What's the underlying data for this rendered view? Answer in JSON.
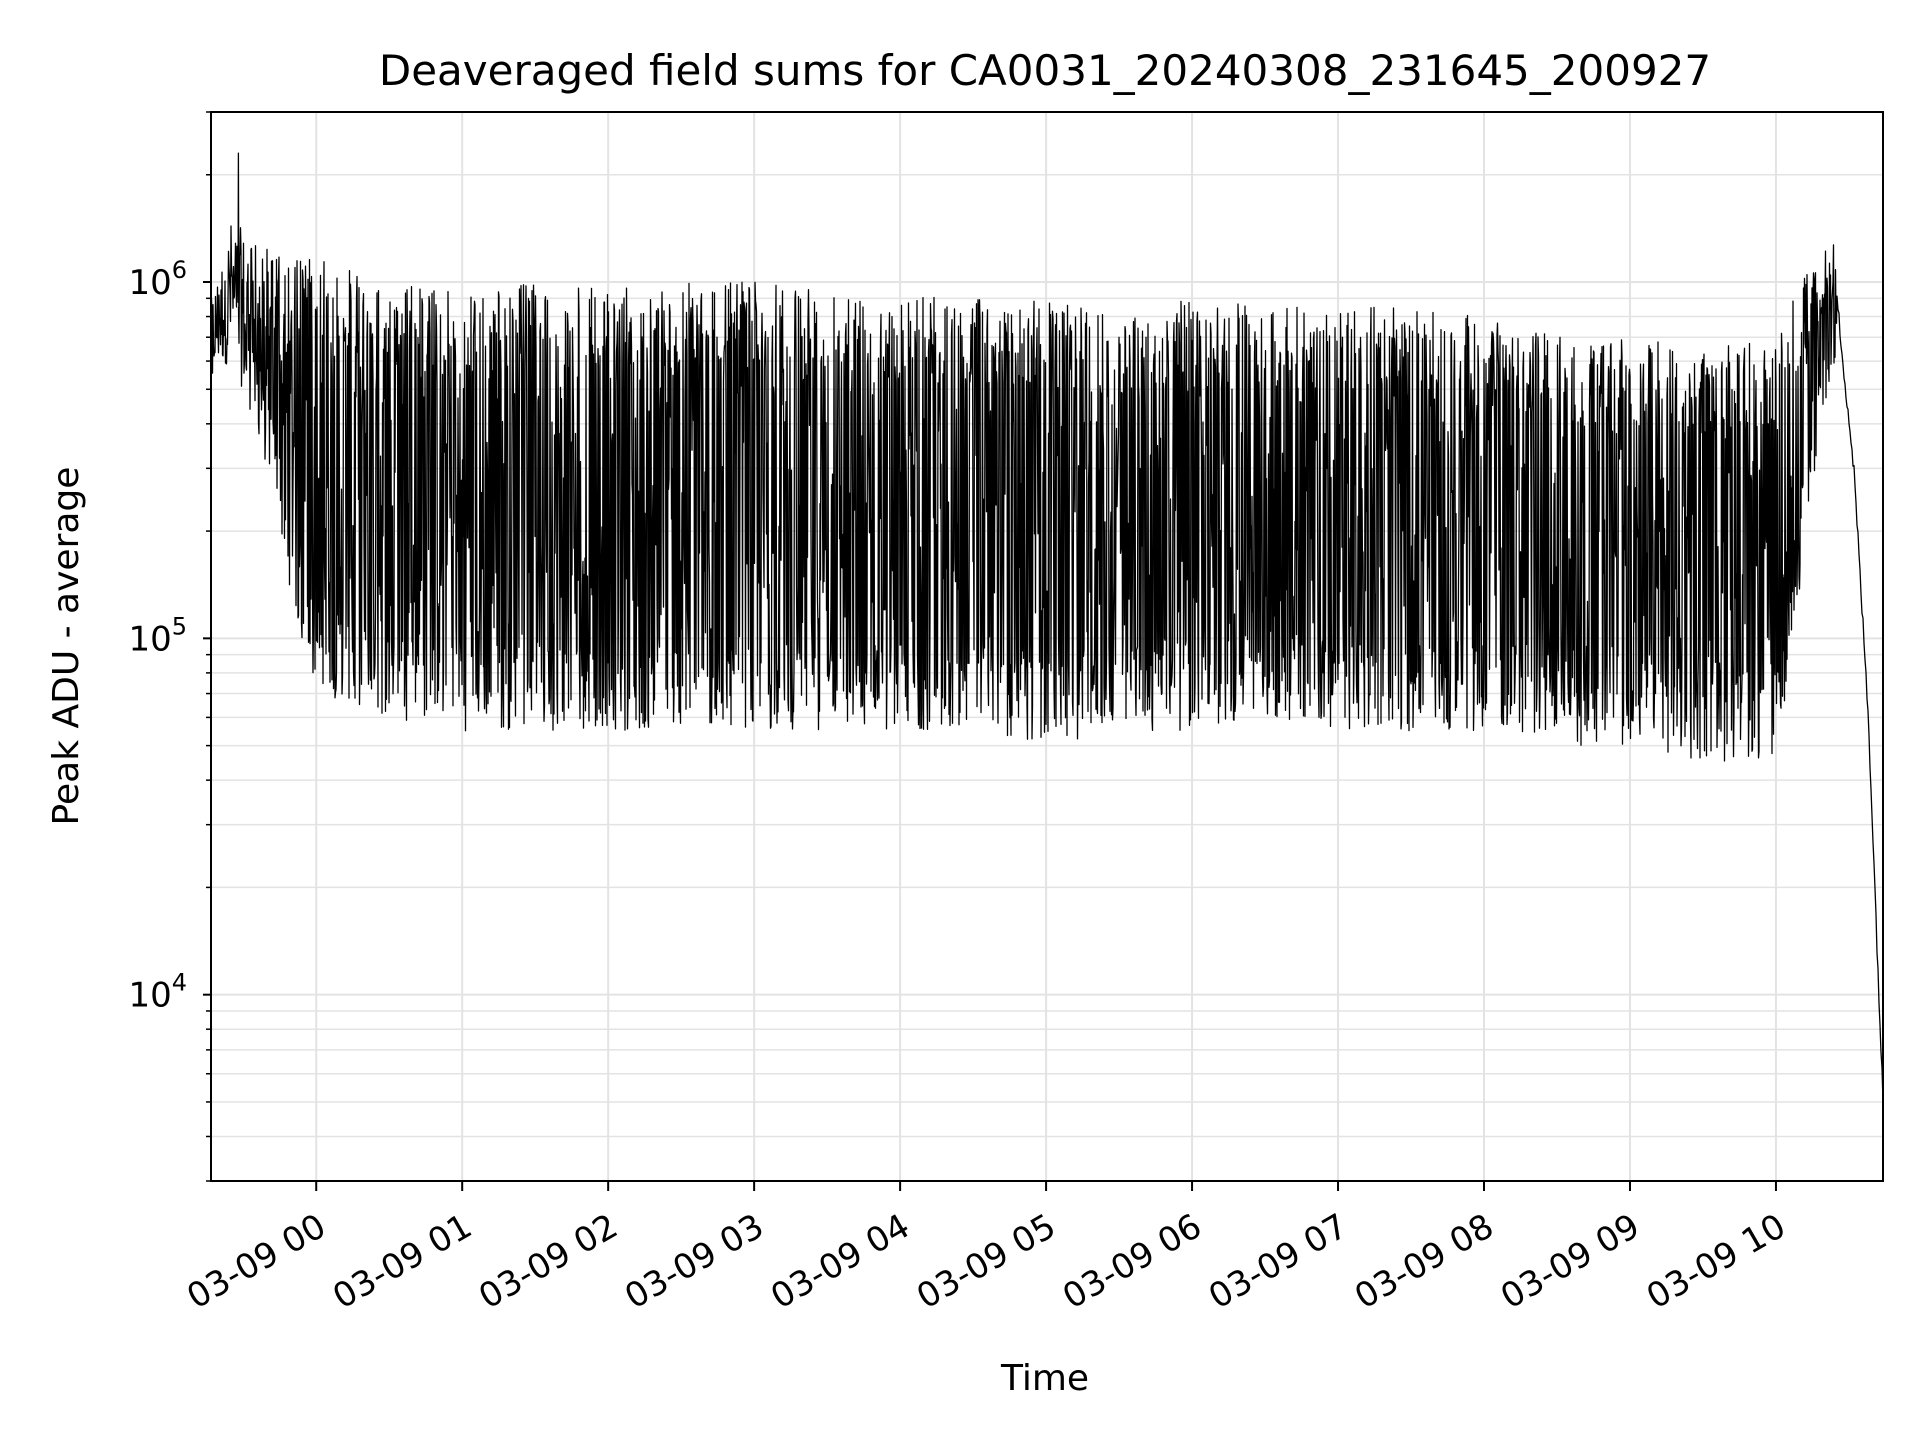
{
  "chart_data": {
    "type": "line",
    "title": "Deaveraged field sums for CA0031_20240308_231645_200927",
    "xlabel": "Time",
    "ylabel": "Peak ADU - average",
    "yscale": "log",
    "ylim": [
      3000,
      3000000
    ],
    "xlim": [
      "2024-03-08 23:16:45",
      "2024-03-09 10:44:00"
    ],
    "grid": true,
    "legend": "none",
    "line_color": "#000000",
    "x_ticks": [
      "03-09 00",
      "03-09 01",
      "03-09 02",
      "03-09 03",
      "03-09 04",
      "03-09 05",
      "03-09 06",
      "03-09 07",
      "03-09 08",
      "03-09 09",
      "03-09 10"
    ],
    "x_tick_times": [
      "2024-03-09 00:00",
      "2024-03-09 01:00",
      "2024-03-09 02:00",
      "2024-03-09 03:00",
      "2024-03-09 04:00",
      "2024-03-09 05:00",
      "2024-03-09 06:00",
      "2024-03-09 07:00",
      "2024-03-09 08:00",
      "2024-03-09 09:00",
      "2024-03-09 10:00"
    ],
    "y_ticks": [
      {
        "value": 10000,
        "base": "10",
        "exp": "4"
      },
      {
        "value": 100000,
        "base": "10",
        "exp": "5"
      },
      {
        "value": 1000000,
        "base": "10",
        "exp": "6"
      }
    ],
    "series": [
      {
        "x": [
          "2024-03-08 23:16:45",
          "2024-03-08 23:25",
          "2024-03-08 23:35",
          "2024-03-08 23:45",
          "2024-03-08 23:55",
          "2024-03-09 00:10",
          "2024-03-09 00:30",
          "2024-03-09 01:00",
          "2024-03-09 01:30",
          "2024-03-09 02:00",
          "2024-03-09 02:30",
          "2024-03-09 03:00",
          "2024-03-09 03:30",
          "2024-03-09 04:00",
          "2024-03-09 04:30",
          "2024-03-09 05:00",
          "2024-03-09 05:30",
          "2024-03-09 06:00",
          "2024-03-09 06:30",
          "2024-03-09 07:00",
          "2024-03-09 07:30",
          "2024-03-09 08:00",
          "2024-03-09 08:30",
          "2024-03-09 09:00",
          "2024-03-09 09:30",
          "2024-03-09 10:00",
          "2024-03-09 10:15",
          "2024-03-09 10:25",
          "2024-03-09 10:32",
          "2024-03-09 10:38",
          "2024-03-09 10:44"
        ],
        "values": [
          700000,
          750000,
          650000,
          600000,
          350000,
          250000,
          300000,
          280000,
          250000,
          300000,
          320000,
          300000,
          280000,
          300000,
          300000,
          250000,
          260000,
          250000,
          280000,
          270000,
          250000,
          240000,
          260000,
          220000,
          200000,
          300000,
          600000,
          900000,
          300000,
          60000,
          5000
        ],
        "upper_envelope": [
          900000,
          1500000,
          1300000,
          1200000,
          1200000,
          1100000,
          1000000,
          950000,
          1000000,
          950000,
          1000000,
          1000000,
          950000,
          950000,
          900000,
          900000,
          800000,
          900000,
          850000,
          850000,
          850000,
          800000,
          700000,
          700000,
          650000,
          700000,
          1200000,
          1400000,
          450000,
          80000,
          5000
        ],
        "lower_envelope": [
          550000,
          600000,
          400000,
          200000,
          80000,
          65000,
          60000,
          55000,
          55000,
          55000,
          55000,
          55000,
          55000,
          55000,
          55000,
          50000,
          55000,
          55000,
          60000,
          55000,
          55000,
          55000,
          50000,
          50000,
          45000,
          45000,
          250000,
          600000,
          200000,
          40000,
          5000
        ],
        "peak": {
          "x": "2024-03-08 23:28",
          "value": 2300000
        }
      }
    ]
  }
}
